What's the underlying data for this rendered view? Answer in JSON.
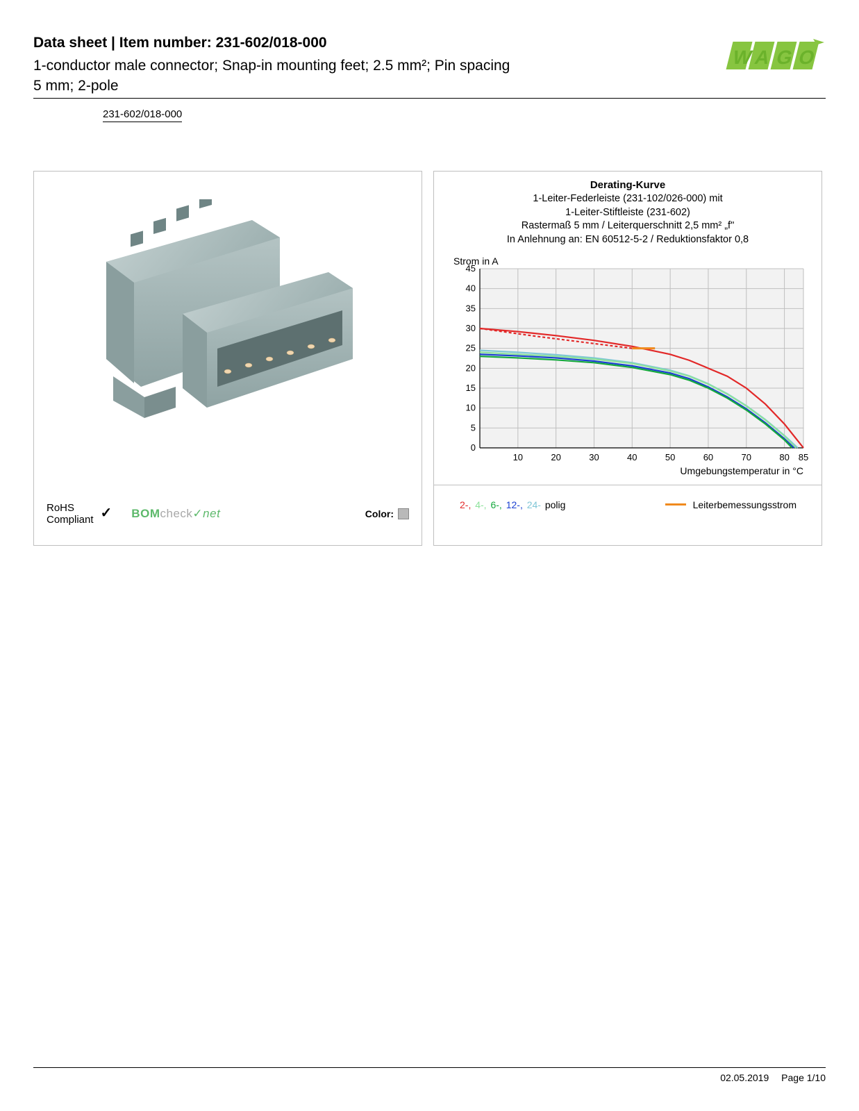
{
  "header": {
    "title_prefix": "Data sheet",
    "title_sep": "  |  ",
    "title_label": "Item number: 231-602/018-000",
    "description": "1-conductor male connector; Snap-in mounting feet; 2.5 mm²; Pin spacing 5 mm; 2-pole",
    "part_number": "231-602/018-000"
  },
  "logo": {
    "text": "WAGO",
    "fill_top": "#a9d23b",
    "fill_bottom": "#6bb22b"
  },
  "product_panel": {
    "connector_color": "#a3b5b5",
    "rohs_line1": "RoHS",
    "rohs_line2": "Compliant",
    "check_glyph": "✓",
    "bomcheck_label": "BOMcheck.net",
    "color_label": "Color:",
    "color_swatch": "#b9b9b9"
  },
  "chart": {
    "title": "Derating-Kurve",
    "sub1": "1-Leiter-Federleiste (231-102/026-000) mit",
    "sub2": "1-Leiter-Stiftleiste (231-602)",
    "sub3": "Rastermaß 5 mm / Leiterquerschnitt 2,5 mm² „f\"",
    "sub4": "In Anlehnung an: EN 60512-5-2 / Reduktionsfaktor 0,8",
    "y_label": "Strom in A",
    "x_label": "Umgebungstemperatur in °C",
    "background_color": "#ffffff",
    "plot_bg": "#f2f2f2",
    "grid_color": "#bfbfbf",
    "axis_color": "#000000",
    "yticks": [
      0,
      5,
      10,
      15,
      20,
      25,
      30,
      35,
      40,
      45
    ],
    "ylim": [
      0,
      45
    ],
    "xticks": [
      10,
      20,
      30,
      40,
      50,
      60,
      70,
      80,
      85
    ],
    "xlim": [
      0,
      85
    ],
    "series": {
      "p2_solid": {
        "color": "#e22828",
        "points": [
          [
            0,
            30
          ],
          [
            10,
            29.2
          ],
          [
            20,
            28.2
          ],
          [
            30,
            27
          ],
          [
            40,
            25.5
          ],
          [
            50,
            23.5
          ],
          [
            55,
            22
          ],
          [
            60,
            20
          ],
          [
            65,
            18
          ],
          [
            70,
            15
          ],
          [
            75,
            11
          ],
          [
            80,
            6
          ],
          [
            85,
            0
          ]
        ]
      },
      "p2_dash": {
        "color": "#e22828",
        "dash": "4 3",
        "points": [
          [
            0,
            30
          ],
          [
            15,
            28
          ],
          [
            30,
            26.2
          ],
          [
            40,
            25
          ]
        ]
      },
      "p4": {
        "color": "#8de29b",
        "points": [
          [
            0,
            24
          ],
          [
            10,
            23.5
          ],
          [
            20,
            23
          ],
          [
            30,
            22.3
          ],
          [
            40,
            21.2
          ],
          [
            50,
            19.3
          ],
          [
            55,
            18
          ],
          [
            60,
            16
          ],
          [
            65,
            13.5
          ],
          [
            70,
            10.5
          ],
          [
            75,
            7
          ],
          [
            80,
            3
          ],
          [
            83,
            0
          ]
        ]
      },
      "p6": {
        "color": "#15a83d",
        "points": [
          [
            0,
            23
          ],
          [
            10,
            22.6
          ],
          [
            20,
            22.1
          ],
          [
            30,
            21.4
          ],
          [
            40,
            20.2
          ],
          [
            50,
            18.4
          ],
          [
            55,
            17
          ],
          [
            60,
            15
          ],
          [
            65,
            12.5
          ],
          [
            70,
            9.5
          ],
          [
            75,
            6
          ],
          [
            80,
            2
          ],
          [
            82,
            0
          ]
        ]
      },
      "p12": {
        "color": "#1a3fd1",
        "points": [
          [
            0,
            23.5
          ],
          [
            10,
            23.1
          ],
          [
            20,
            22.6
          ],
          [
            30,
            21.8
          ],
          [
            40,
            20.6
          ],
          [
            50,
            18.8
          ],
          [
            55,
            17.4
          ],
          [
            60,
            15.3
          ],
          [
            65,
            12.8
          ],
          [
            70,
            9.8
          ],
          [
            75,
            6.3
          ],
          [
            80,
            2.3
          ],
          [
            82.5,
            0
          ]
        ]
      },
      "p24": {
        "color": "#7fc6d6",
        "points": [
          [
            0,
            24.5
          ],
          [
            10,
            24
          ],
          [
            20,
            23.4
          ],
          [
            30,
            22.6
          ],
          [
            40,
            21.4
          ],
          [
            50,
            19.5
          ],
          [
            55,
            18.1
          ],
          [
            60,
            16.1
          ],
          [
            65,
            13.6
          ],
          [
            70,
            10.6
          ],
          [
            75,
            7.1
          ],
          [
            80,
            3.1
          ],
          [
            83.5,
            0
          ]
        ]
      },
      "rated": {
        "color": "#f08a1d",
        "points": [
          [
            40,
            25
          ],
          [
            46,
            25
          ]
        ]
      }
    },
    "legend_polig": {
      "p2": {
        "label": "2-,",
        "color": "#e22828"
      },
      "p4": {
        "label": "4-,",
        "color": "#8de29b"
      },
      "p6": {
        "label": "6-,",
        "color": "#15a83d"
      },
      "p12": {
        "label": "12-,",
        "color": "#1a3fd1"
      },
      "p24": {
        "label": "24-",
        "color": "#7fc6d6"
      },
      "suffix": " polig"
    },
    "legend_rated_label": "Leiterbemessungsstrom",
    "legend_rated_color": "#f08a1d"
  },
  "footer": {
    "date": "02.05.2019",
    "page": "Page 1/10"
  }
}
